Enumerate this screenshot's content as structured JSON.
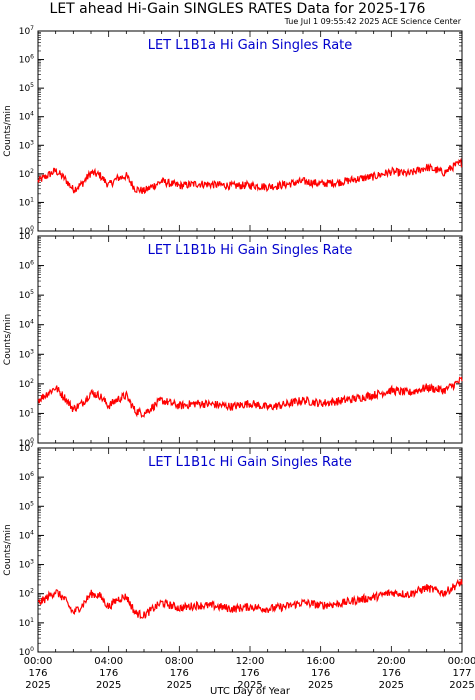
{
  "header": {
    "title": "LET ahead Hi-Gain SINGLES RATES Data for 2025-176",
    "timestamp": "Tue Jul  1 09:55:42 2025 ACE Science Center"
  },
  "colors": {
    "data_line": "#ff0000",
    "panel_title": "#0000cc",
    "axis": "#000000"
  },
  "chart_data": [
    {
      "type": "line",
      "title": "LET L1B1a Hi Gain Singles Rate",
      "ylabel": "Counts/min",
      "yscale": "log",
      "ylim": [
        1,
        10000000
      ],
      "ytick_labels": [
        "10^0",
        "10^1",
        "10^2",
        "10^3",
        "10^4",
        "10^5",
        "10^6",
        "10^7"
      ],
      "x_unit": "hours",
      "xlim": [
        0,
        24
      ],
      "series": [
        {
          "x": [
            0,
            1,
            1.5,
            2,
            2.5,
            3,
            3.5,
            4,
            4.5,
            5,
            5.5,
            6,
            7,
            8,
            9,
            10,
            11,
            12,
            13,
            14,
            15,
            16,
            17,
            18,
            19,
            20,
            21,
            22,
            23,
            23.5,
            24
          ],
          "values": [
            55,
            130,
            70,
            28,
            45,
            110,
            90,
            40,
            70,
            85,
            30,
            25,
            55,
            38,
            45,
            42,
            38,
            40,
            35,
            42,
            55,
            45,
            50,
            65,
            80,
            120,
            100,
            170,
            110,
            180,
            250
          ]
        }
      ]
    },
    {
      "type": "line",
      "title": "LET L1B1b Hi Gain Singles Rate",
      "ylabel": "Counts/min",
      "yscale": "log",
      "ylim": [
        1,
        10000000
      ],
      "ytick_labels": [
        "10^0",
        "10^1",
        "10^2",
        "10^3",
        "10^4",
        "10^5",
        "10^6",
        "10^7"
      ],
      "x_unit": "hours",
      "xlim": [
        0,
        24
      ],
      "series": [
        {
          "x": [
            0,
            1,
            1.5,
            2,
            2.5,
            3,
            3.5,
            4,
            4.5,
            5,
            5.5,
            6,
            7,
            8,
            9,
            10,
            11,
            12,
            13,
            14,
            15,
            16,
            17,
            18,
            19,
            20,
            21,
            22,
            23,
            23.5,
            24
          ],
          "values": [
            28,
            75,
            35,
            14,
            22,
            50,
            40,
            18,
            30,
            40,
            12,
            10,
            28,
            18,
            22,
            20,
            17,
            22,
            16,
            20,
            28,
            22,
            26,
            32,
            42,
            60,
            50,
            75,
            60,
            90,
            140
          ]
        }
      ]
    },
    {
      "type": "line",
      "title": "LET L1B1c Hi Gain Singles Rate",
      "ylabel": "Counts/min",
      "yscale": "log",
      "ylim": [
        1,
        10000000
      ],
      "ytick_labels": [
        "10^0",
        "10^1",
        "10^2",
        "10^3",
        "10^4",
        "10^5",
        "10^6",
        "10^7"
      ],
      "x_unit": "hours",
      "xlim": [
        0,
        24
      ],
      "series": [
        {
          "x": [
            0,
            1,
            1.5,
            2,
            2.5,
            3,
            3.5,
            4,
            4.5,
            5,
            5.5,
            6,
            7,
            8,
            9,
            10,
            11,
            12,
            13,
            14,
            15,
            16,
            17,
            18,
            19,
            20,
            21,
            22,
            23,
            23.5,
            24
          ],
          "values": [
            45,
            120,
            65,
            22,
            40,
            100,
            85,
            35,
            65,
            80,
            22,
            18,
            50,
            32,
            40,
            38,
            30,
            36,
            30,
            36,
            50,
            40,
            45,
            60,
            75,
            110,
            95,
            160,
            105,
            170,
            260
          ]
        }
      ]
    }
  ],
  "x_axis": {
    "label": "UTC Day of Year",
    "ticks": [
      {
        "time": "00:00",
        "doy": "176",
        "year": "2025"
      },
      {
        "time": "04:00",
        "doy": "176",
        "year": "2025"
      },
      {
        "time": "08:00",
        "doy": "176",
        "year": "2025"
      },
      {
        "time": "12:00",
        "doy": "176",
        "year": "2025"
      },
      {
        "time": "16:00",
        "doy": "176",
        "year": "2025"
      },
      {
        "time": "20:00",
        "doy": "176",
        "year": "2025"
      },
      {
        "time": "00:00",
        "doy": "177",
        "year": "2025"
      }
    ]
  }
}
